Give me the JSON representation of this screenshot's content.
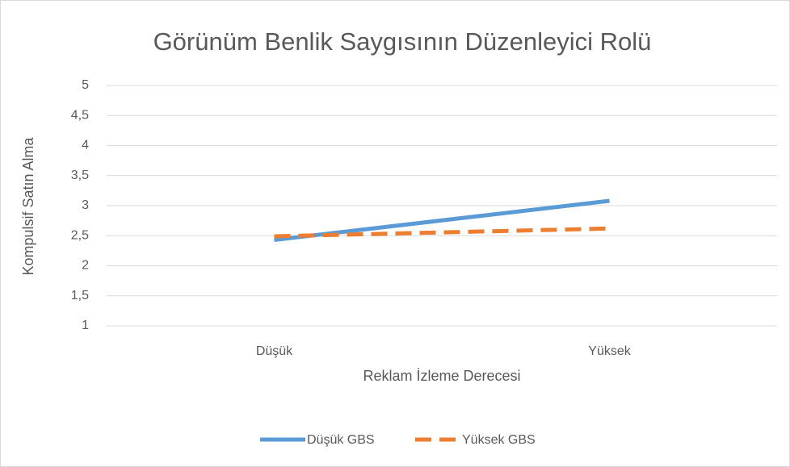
{
  "chart_data": {
    "type": "line",
    "title": "Görünüm Benlik Saygısının Düzenleyici Rolü",
    "x_label": "Reklam İzleme Derecesi",
    "y_label": "Kompulsif Satın Alma",
    "categories": [
      "Düşük",
      "Yüksek"
    ],
    "series": [
      {
        "name": "Düşük GBS",
        "color": "#5b9bd5",
        "dash": false,
        "values": [
          2.43,
          3.08
        ]
      },
      {
        "name": "Yüksek GBS",
        "color": "#ed7d31",
        "dash": true,
        "values": [
          2.49,
          2.62
        ]
      }
    ],
    "ylim": [
      1,
      5
    ],
    "yticks": [
      1,
      {
        "value": 1.5,
        "label": "1,5"
      },
      2,
      {
        "value": 2.5,
        "label": "2,5"
      },
      3,
      {
        "value": 3.5,
        "label": "3,5"
      },
      4,
      {
        "value": 4.5,
        "label": "4,5"
      },
      5
    ],
    "grid": true,
    "legend": "bottom"
  }
}
